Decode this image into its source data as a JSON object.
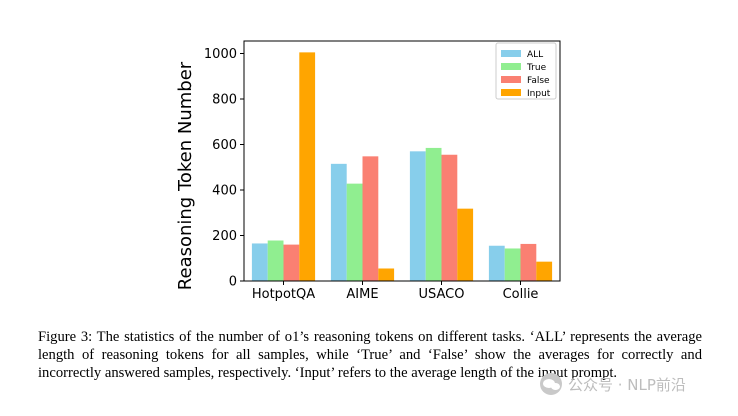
{
  "chart_data": {
    "type": "bar",
    "categories": [
      "HotpotQA",
      "AIME",
      "USACO",
      "Collie"
    ],
    "series": [
      {
        "name": "ALL",
        "color": "#87ceeb",
        "values": [
          165,
          515,
          570,
          155
        ]
      },
      {
        "name": "True",
        "color": "#90ee90",
        "values": [
          178,
          428,
          585,
          143
        ]
      },
      {
        "name": "False",
        "color": "#fa8072",
        "values": [
          160,
          548,
          555,
          163
        ]
      },
      {
        "name": "Input",
        "color": "#ffa500",
        "values": [
          1005,
          55,
          318,
          85
        ]
      }
    ],
    "xlabel": "",
    "ylabel": "Reasoning Token Number",
    "ylim": [
      0,
      1055
    ],
    "yticks": [
      0,
      200,
      400,
      600,
      800,
      1000
    ],
    "grid": false,
    "legend_position": "top-right"
  },
  "caption": "Figure 3:  The statistics of the number of o1’s reasoning tokens on different tasks. ‘ALL’ represents the average length of reasoning tokens for all samples, while ‘True’ and ‘False’ show the averages for correctly and incorrectly answered samples, respectively. ‘Input’ refers to the average length of the input prompt.",
  "watermark": {
    "icon": "wechat-icon",
    "text": "公众号 · NLP前沿"
  }
}
